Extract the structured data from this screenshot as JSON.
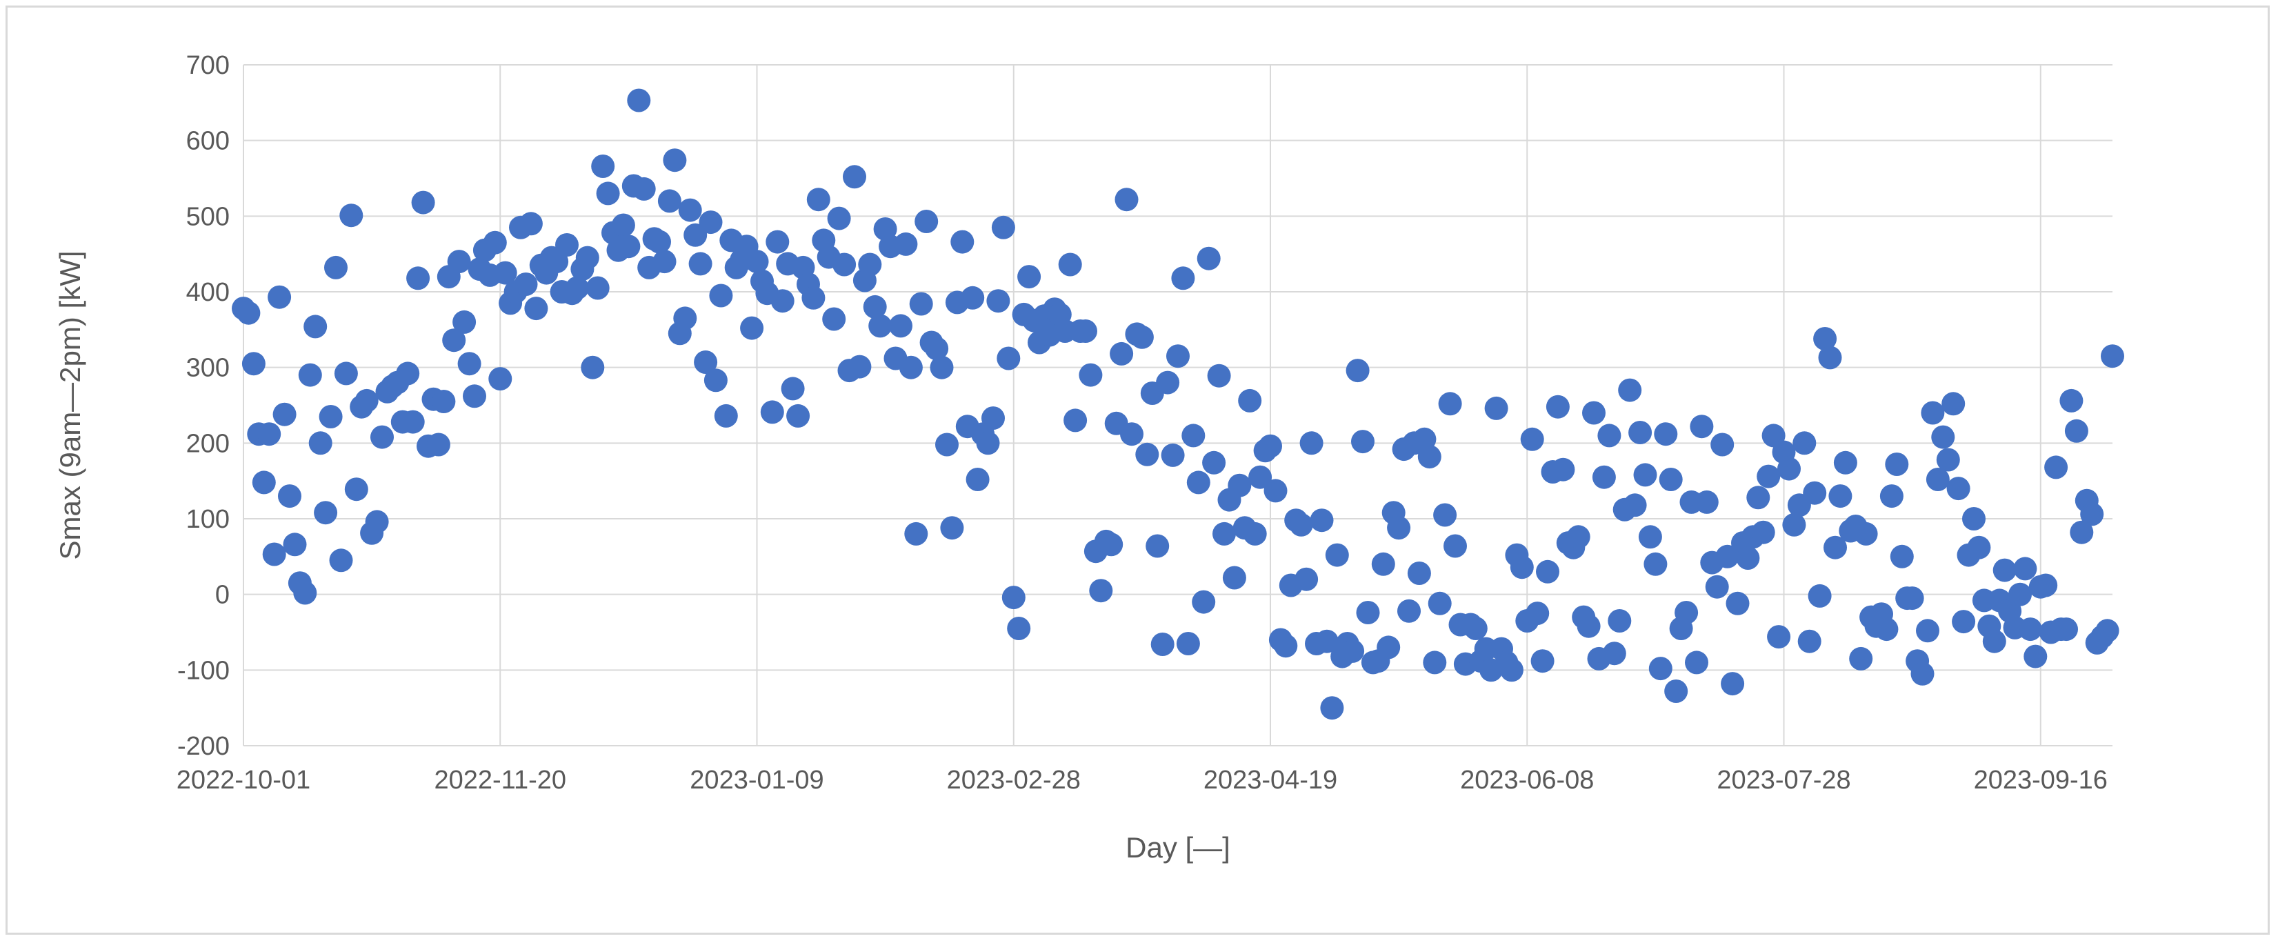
{
  "chart_data": {
    "type": "scatter",
    "title": "",
    "xlabel": "Day [—]",
    "ylabel": "Smax (9am—2pm) [kW]",
    "x_axis_type": "date",
    "xlim": [
      "2022-10-01",
      "2023-09-30"
    ],
    "ylim": [
      -200,
      700
    ],
    "y_ticks": [
      -200,
      -100,
      0,
      100,
      200,
      300,
      400,
      500,
      600,
      700
    ],
    "y_tick_labels": [
      "-200",
      "-100",
      "0",
      "100",
      "200",
      "300",
      "400",
      "500",
      "600",
      "700"
    ],
    "x_tick_labels": [
      "2022-10-01",
      "2022-11-20",
      "2023-01-09",
      "2023-02-28",
      "2023-04-19",
      "2023-06-08",
      "2023-07-28",
      "2023-09-16"
    ],
    "grid": true,
    "legend": "none",
    "colors": {
      "marker": "#4472C4",
      "grid": "#d9d9d9",
      "text": "#595959",
      "frame": "#d9d9d9"
    },
    "points": [
      [
        "2022-10-01",
        378
      ],
      [
        "2022-10-02",
        372
      ],
      [
        "2022-10-03",
        305
      ],
      [
        "2022-10-04",
        212
      ],
      [
        "2022-10-05",
        148
      ],
      [
        "2022-10-06",
        212
      ],
      [
        "2022-10-07",
        53
      ],
      [
        "2022-10-08",
        393
      ],
      [
        "2022-10-09",
        238
      ],
      [
        "2022-10-10",
        130
      ],
      [
        "2022-10-11",
        66
      ],
      [
        "2022-10-12",
        15
      ],
      [
        "2022-10-13",
        2
      ],
      [
        "2022-10-14",
        290
      ],
      [
        "2022-10-15",
        354
      ],
      [
        "2022-10-16",
        200
      ],
      [
        "2022-10-17",
        108
      ],
      [
        "2022-10-18",
        235
      ],
      [
        "2022-10-19",
        432
      ],
      [
        "2022-10-20",
        45
      ],
      [
        "2022-10-21",
        292
      ],
      [
        "2022-10-22",
        501
      ],
      [
        "2022-10-23",
        139
      ],
      [
        "2022-10-24",
        248
      ],
      [
        "2022-10-25",
        256
      ],
      [
        "2022-10-26",
        81
      ],
      [
        "2022-10-27",
        96
      ],
      [
        "2022-10-28",
        208
      ],
      [
        "2022-10-29",
        268
      ],
      [
        "2022-10-30",
        275
      ],
      [
        "2022-10-31",
        280
      ],
      [
        "2022-11-01",
        228
      ],
      [
        "2022-11-02",
        292
      ],
      [
        "2022-11-03",
        228
      ],
      [
        "2022-11-04",
        418
      ],
      [
        "2022-11-05",
        518
      ],
      [
        "2022-11-06",
        196
      ],
      [
        "2022-11-07",
        258
      ],
      [
        "2022-11-08",
        198
      ],
      [
        "2022-11-09",
        255
      ],
      [
        "2022-11-10",
        420
      ],
      [
        "2022-11-11",
        336
      ],
      [
        "2022-11-12",
        440
      ],
      [
        "2022-11-13",
        360
      ],
      [
        "2022-11-14",
        305
      ],
      [
        "2022-11-15",
        262
      ],
      [
        "2022-11-16",
        430
      ],
      [
        "2022-11-17",
        455
      ],
      [
        "2022-11-18",
        422
      ],
      [
        "2022-11-19",
        465
      ],
      [
        "2022-11-20",
        285
      ],
      [
        "2022-11-21",
        425
      ],
      [
        "2022-11-22",
        385
      ],
      [
        "2022-11-23",
        400
      ],
      [
        "2022-11-24",
        485
      ],
      [
        "2022-11-25",
        410
      ],
      [
        "2022-11-26",
        490
      ],
      [
        "2022-11-27",
        378
      ],
      [
        "2022-11-28",
        435
      ],
      [
        "2022-11-29",
        425
      ],
      [
        "2022-11-30",
        445
      ],
      [
        "2022-12-01",
        440
      ],
      [
        "2022-12-02",
        400
      ],
      [
        "2022-12-03",
        462
      ],
      [
        "2022-12-04",
        398
      ],
      [
        "2022-12-05",
        405
      ],
      [
        "2022-12-06",
        430
      ],
      [
        "2022-12-07",
        445
      ],
      [
        "2022-12-08",
        300
      ],
      [
        "2022-12-09",
        405
      ],
      [
        "2022-12-10",
        566
      ],
      [
        "2022-12-11",
        530
      ],
      [
        "2022-12-12",
        478
      ],
      [
        "2022-12-13",
        455
      ],
      [
        "2022-12-14",
        488
      ],
      [
        "2022-12-15",
        460
      ],
      [
        "2022-12-16",
        540
      ],
      [
        "2022-12-17",
        653
      ],
      [
        "2022-12-18",
        536
      ],
      [
        "2022-12-19",
        432
      ],
      [
        "2022-12-20",
        470
      ],
      [
        "2022-12-21",
        466
      ],
      [
        "2022-12-22",
        440
      ],
      [
        "2022-12-23",
        520
      ],
      [
        "2022-12-24",
        574
      ],
      [
        "2022-12-25",
        345
      ],
      [
        "2022-12-26",
        365
      ],
      [
        "2022-12-27",
        508
      ],
      [
        "2022-12-28",
        475
      ],
      [
        "2022-12-29",
        437
      ],
      [
        "2022-12-30",
        307
      ],
      [
        "2022-12-31",
        492
      ],
      [
        "2023-01-01",
        283
      ],
      [
        "2023-01-02",
        395
      ],
      [
        "2023-01-03",
        236
      ],
      [
        "2023-01-04",
        468
      ],
      [
        "2023-01-05",
        432
      ],
      [
        "2023-01-06",
        442
      ],
      [
        "2023-01-07",
        460
      ],
      [
        "2023-01-08",
        352
      ],
      [
        "2023-01-09",
        440
      ],
      [
        "2023-01-10",
        414
      ],
      [
        "2023-01-11",
        398
      ],
      [
        "2023-01-12",
        241
      ],
      [
        "2023-01-13",
        466
      ],
      [
        "2023-01-14",
        388
      ],
      [
        "2023-01-15",
        437
      ],
      [
        "2023-01-16",
        272
      ],
      [
        "2023-01-17",
        236
      ],
      [
        "2023-01-18",
        432
      ],
      [
        "2023-01-19",
        410
      ],
      [
        "2023-01-20",
        392
      ],
      [
        "2023-01-21",
        522
      ],
      [
        "2023-01-22",
        468
      ],
      [
        "2023-01-23",
        446
      ],
      [
        "2023-01-24",
        364
      ],
      [
        "2023-01-25",
        497
      ],
      [
        "2023-01-26",
        436
      ],
      [
        "2023-01-27",
        296
      ],
      [
        "2023-01-28",
        552
      ],
      [
        "2023-01-29",
        301
      ],
      [
        "2023-01-30",
        415
      ],
      [
        "2023-01-31",
        436
      ],
      [
        "2023-02-01",
        380
      ],
      [
        "2023-02-02",
        355
      ],
      [
        "2023-02-03",
        483
      ],
      [
        "2023-02-04",
        460
      ],
      [
        "2023-02-05",
        312
      ],
      [
        "2023-02-06",
        355
      ],
      [
        "2023-02-07",
        463
      ],
      [
        "2023-02-08",
        300
      ],
      [
        "2023-02-09",
        80
      ],
      [
        "2023-02-10",
        384
      ],
      [
        "2023-02-11",
        493
      ],
      [
        "2023-02-12",
        333
      ],
      [
        "2023-02-13",
        325
      ],
      [
        "2023-02-14",
        300
      ],
      [
        "2023-02-15",
        198
      ],
      [
        "2023-02-16",
        88
      ],
      [
        "2023-02-17",
        386
      ],
      [
        "2023-02-18",
        466
      ],
      [
        "2023-02-19",
        222
      ],
      [
        "2023-02-20",
        392
      ],
      [
        "2023-02-21",
        152
      ],
      [
        "2023-02-22",
        212
      ],
      [
        "2023-02-23",
        200
      ],
      [
        "2023-02-24",
        233
      ],
      [
        "2023-02-25",
        388
      ],
      [
        "2023-02-26",
        485
      ],
      [
        "2023-02-27",
        312
      ],
      [
        "2023-02-28",
        -4
      ],
      [
        "2023-03-01",
        -45
      ],
      [
        "2023-03-02",
        370
      ],
      [
        "2023-03-03",
        420
      ],
      [
        "2023-03-04",
        362
      ],
      [
        "2023-03-05",
        333
      ],
      [
        "2023-03-06",
        368
      ],
      [
        "2023-03-07",
        343
      ],
      [
        "2023-03-08",
        377
      ],
      [
        "2023-03-09",
        370
      ],
      [
        "2023-03-10",
        348
      ],
      [
        "2023-03-11",
        436
      ],
      [
        "2023-03-12",
        230
      ],
      [
        "2023-03-13",
        348
      ],
      [
        "2023-03-14",
        348
      ],
      [
        "2023-03-15",
        290
      ],
      [
        "2023-03-16",
        57
      ],
      [
        "2023-03-17",
        5
      ],
      [
        "2023-03-18",
        70
      ],
      [
        "2023-03-19",
        66
      ],
      [
        "2023-03-20",
        226
      ],
      [
        "2023-03-21",
        318
      ],
      [
        "2023-03-22",
        522
      ],
      [
        "2023-03-23",
        212
      ],
      [
        "2023-03-24",
        344
      ],
      [
        "2023-03-25",
        340
      ],
      [
        "2023-03-26",
        185
      ],
      [
        "2023-03-27",
        266
      ],
      [
        "2023-03-28",
        64
      ],
      [
        "2023-03-29",
        -66
      ],
      [
        "2023-03-30",
        280
      ],
      [
        "2023-03-31",
        184
      ],
      [
        "2023-04-01",
        315
      ],
      [
        "2023-04-02",
        418
      ],
      [
        "2023-04-03",
        -65
      ],
      [
        "2023-04-04",
        210
      ],
      [
        "2023-04-05",
        148
      ],
      [
        "2023-04-06",
        -10
      ],
      [
        "2023-04-07",
        444
      ],
      [
        "2023-04-08",
        174
      ],
      [
        "2023-04-09",
        289
      ],
      [
        "2023-04-10",
        80
      ],
      [
        "2023-04-11",
        125
      ],
      [
        "2023-04-12",
        22
      ],
      [
        "2023-04-13",
        144
      ],
      [
        "2023-04-14",
        88
      ],
      [
        "2023-04-15",
        256
      ],
      [
        "2023-04-16",
        80
      ],
      [
        "2023-04-17",
        155
      ],
      [
        "2023-04-18",
        190
      ],
      [
        "2023-04-19",
        196
      ],
      [
        "2023-04-20",
        137
      ],
      [
        "2023-04-21",
        -60
      ],
      [
        "2023-04-22",
        -68
      ],
      [
        "2023-04-23",
        12
      ],
      [
        "2023-04-24",
        98
      ],
      [
        "2023-04-25",
        92
      ],
      [
        "2023-04-26",
        20
      ],
      [
        "2023-04-27",
        200
      ],
      [
        "2023-04-28",
        -65
      ],
      [
        "2023-04-29",
        98
      ],
      [
        "2023-04-30",
        -62
      ],
      [
        "2023-05-01",
        -150
      ],
      [
        "2023-05-02",
        52
      ],
      [
        "2023-05-03",
        -82
      ],
      [
        "2023-05-04",
        -65
      ],
      [
        "2023-05-05",
        -75
      ],
      [
        "2023-05-06",
        296
      ],
      [
        "2023-05-07",
        202
      ],
      [
        "2023-05-08",
        -24
      ],
      [
        "2023-05-09",
        -90
      ],
      [
        "2023-05-10",
        -88
      ],
      [
        "2023-05-11",
        40
      ],
      [
        "2023-05-12",
        -70
      ],
      [
        "2023-05-13",
        108
      ],
      [
        "2023-05-14",
        88
      ],
      [
        "2023-05-15",
        192
      ],
      [
        "2023-05-16",
        -22
      ],
      [
        "2023-05-17",
        200
      ],
      [
        "2023-05-18",
        28
      ],
      [
        "2023-05-19",
        205
      ],
      [
        "2023-05-20",
        182
      ],
      [
        "2023-05-21",
        -90
      ],
      [
        "2023-05-22",
        -12
      ],
      [
        "2023-05-23",
        105
      ],
      [
        "2023-05-24",
        252
      ],
      [
        "2023-05-25",
        64
      ],
      [
        "2023-05-26",
        -40
      ],
      [
        "2023-05-27",
        -92
      ],
      [
        "2023-05-28",
        -40
      ],
      [
        "2023-05-29",
        -45
      ],
      [
        "2023-05-30",
        -88
      ],
      [
        "2023-05-31",
        -72
      ],
      [
        "2023-06-01",
        -100
      ],
      [
        "2023-06-02",
        246
      ],
      [
        "2023-06-03",
        -72
      ],
      [
        "2023-06-04",
        -90
      ],
      [
        "2023-06-05",
        -100
      ],
      [
        "2023-06-06",
        52
      ],
      [
        "2023-06-07",
        36
      ],
      [
        "2023-06-08",
        -35
      ],
      [
        "2023-06-09",
        205
      ],
      [
        "2023-06-10",
        -25
      ],
      [
        "2023-06-11",
        -88
      ],
      [
        "2023-06-12",
        30
      ],
      [
        "2023-06-13",
        162
      ],
      [
        "2023-06-14",
        248
      ],
      [
        "2023-06-15",
        165
      ],
      [
        "2023-06-16",
        68
      ],
      [
        "2023-06-17",
        62
      ],
      [
        "2023-06-18",
        76
      ],
      [
        "2023-06-19",
        -30
      ],
      [
        "2023-06-20",
        -42
      ],
      [
        "2023-06-21",
        240
      ],
      [
        "2023-06-22",
        -85
      ],
      [
        "2023-06-23",
        155
      ],
      [
        "2023-06-24",
        210
      ],
      [
        "2023-06-25",
        -78
      ],
      [
        "2023-06-26",
        -35
      ],
      [
        "2023-06-27",
        112
      ],
      [
        "2023-06-28",
        270
      ],
      [
        "2023-06-29",
        118
      ],
      [
        "2023-06-30",
        214
      ],
      [
        "2023-07-01",
        158
      ],
      [
        "2023-07-02",
        76
      ],
      [
        "2023-07-03",
        40
      ],
      [
        "2023-07-04",
        -98
      ],
      [
        "2023-07-05",
        212
      ],
      [
        "2023-07-06",
        152
      ],
      [
        "2023-07-07",
        -128
      ],
      [
        "2023-07-08",
        -45
      ],
      [
        "2023-07-09",
        -24
      ],
      [
        "2023-07-10",
        122
      ],
      [
        "2023-07-11",
        -90
      ],
      [
        "2023-07-12",
        222
      ],
      [
        "2023-07-13",
        122
      ],
      [
        "2023-07-14",
        42
      ],
      [
        "2023-07-15",
        10
      ],
      [
        "2023-07-16",
        198
      ],
      [
        "2023-07-17",
        50
      ],
      [
        "2023-07-18",
        -118
      ],
      [
        "2023-07-19",
        -12
      ],
      [
        "2023-07-20",
        68
      ],
      [
        "2023-07-21",
        48
      ],
      [
        "2023-07-22",
        76
      ],
      [
        "2023-07-23",
        128
      ],
      [
        "2023-07-24",
        82
      ],
      [
        "2023-07-25",
        156
      ],
      [
        "2023-07-26",
        210
      ],
      [
        "2023-07-27",
        -56
      ],
      [
        "2023-07-28",
        188
      ],
      [
        "2023-07-29",
        166
      ],
      [
        "2023-07-30",
        92
      ],
      [
        "2023-07-31",
        118
      ],
      [
        "2023-08-01",
        200
      ],
      [
        "2023-08-02",
        -62
      ],
      [
        "2023-08-03",
        134
      ],
      [
        "2023-08-04",
        -2
      ],
      [
        "2023-08-05",
        338
      ],
      [
        "2023-08-06",
        313
      ],
      [
        "2023-08-07",
        62
      ],
      [
        "2023-08-08",
        130
      ],
      [
        "2023-08-09",
        174
      ],
      [
        "2023-08-10",
        84
      ],
      [
        "2023-08-11",
        90
      ],
      [
        "2023-08-12",
        -85
      ],
      [
        "2023-08-13",
        80
      ],
      [
        "2023-08-14",
        -30
      ],
      [
        "2023-08-15",
        -42
      ],
      [
        "2023-08-16",
        -26
      ],
      [
        "2023-08-17",
        -46
      ],
      [
        "2023-08-18",
        130
      ],
      [
        "2023-08-19",
        172
      ],
      [
        "2023-08-20",
        50
      ],
      [
        "2023-08-21",
        -5
      ],
      [
        "2023-08-22",
        -5
      ],
      [
        "2023-08-23",
        -88
      ],
      [
        "2023-08-24",
        -105
      ],
      [
        "2023-08-25",
        -48
      ],
      [
        "2023-08-26",
        240
      ],
      [
        "2023-08-27",
        152
      ],
      [
        "2023-08-28",
        208
      ],
      [
        "2023-08-29",
        178
      ],
      [
        "2023-08-30",
        252
      ],
      [
        "2023-08-31",
        140
      ],
      [
        "2023-09-01",
        -36
      ],
      [
        "2023-09-02",
        52
      ],
      [
        "2023-09-03",
        100
      ],
      [
        "2023-09-04",
        62
      ],
      [
        "2023-09-05",
        -8
      ],
      [
        "2023-09-06",
        -42
      ],
      [
        "2023-09-07",
        -62
      ],
      [
        "2023-09-08",
        -8
      ],
      [
        "2023-09-09",
        32
      ],
      [
        "2023-09-10",
        -22
      ],
      [
        "2023-09-11",
        -44
      ],
      [
        "2023-09-12",
        0
      ],
      [
        "2023-09-13",
        34
      ],
      [
        "2023-09-14",
        -46
      ],
      [
        "2023-09-15",
        -82
      ],
      [
        "2023-09-16",
        10
      ],
      [
        "2023-09-17",
        12
      ],
      [
        "2023-09-18",
        -50
      ],
      [
        "2023-09-19",
        168
      ],
      [
        "2023-09-20",
        -46
      ],
      [
        "2023-09-21",
        -46
      ],
      [
        "2023-09-22",
        256
      ],
      [
        "2023-09-23",
        216
      ],
      [
        "2023-09-24",
        82
      ],
      [
        "2023-09-25",
        124
      ],
      [
        "2023-09-26",
        106
      ],
      [
        "2023-09-27",
        -64
      ],
      [
        "2023-09-28",
        -56
      ],
      [
        "2023-09-29",
        -48
      ],
      [
        "2023-09-30",
        315
      ]
    ]
  }
}
